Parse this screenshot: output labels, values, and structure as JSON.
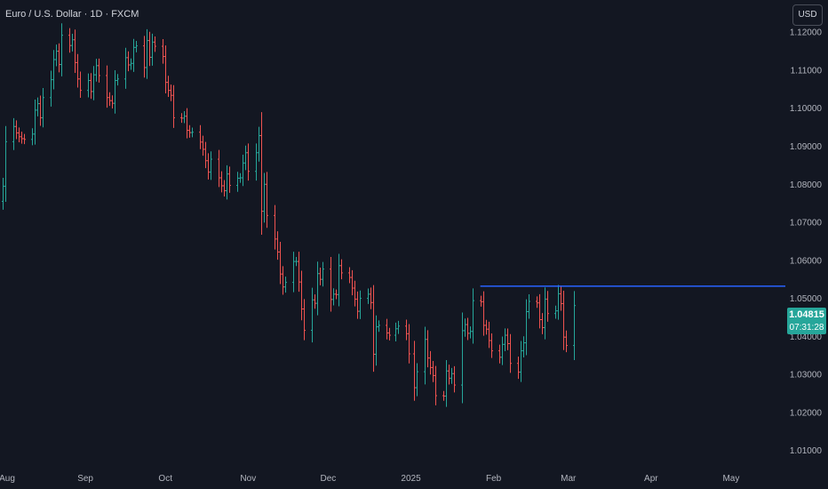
{
  "header": {
    "symbol_title": "Euro / U.S. Dollar · 1D · FXCM",
    "currency_button": "USD"
  },
  "last_price": {
    "value": "1.04815",
    "countdown": "07:31:28"
  },
  "colors": {
    "background": "#131722",
    "up": "#26a69a",
    "down": "#ef5350",
    "level_line": "#2962ff",
    "axis_text": "#b2b5be"
  },
  "chart_data": {
    "type": "ohlc",
    "title": "Euro / U.S. Dollar · 1D · FXCM",
    "ylim": [
      1.005,
      1.128
    ],
    "y_ticks": [
      "1.12000",
      "1.11000",
      "1.10000",
      "1.09000",
      "1.08000",
      "1.07000",
      "1.06000",
      "1.05000",
      "1.04000",
      "1.03000",
      "1.02000",
      "1.01000"
    ],
    "x_ticks": [
      {
        "label": "Aug",
        "date": "2024-08-01"
      },
      {
        "label": "Sep",
        "date": "2024-09-01"
      },
      {
        "label": "Oct",
        "date": "2024-10-01"
      },
      {
        "label": "Nov",
        "date": "2024-11-01"
      },
      {
        "label": "Dec",
        "date": "2024-12-01"
      },
      {
        "label": "2025",
        "date": "2025-01-01"
      },
      {
        "label": "Feb",
        "date": "2025-02-01"
      },
      {
        "label": "Mar",
        "date": "2025-03-01"
      },
      {
        "label": "Apr",
        "date": "2025-04-01"
      },
      {
        "label": "May",
        "date": "2025-05-01"
      }
    ],
    "x_range": [
      "2024-07-31",
      "2025-05-20"
    ],
    "horizontal_line": {
      "price": 1.0532,
      "from_date": "2025-01-27"
    },
    "series": {
      "close": [
        [
          "2024-08-01",
          1.0795
        ],
        [
          "2024-08-02",
          1.0912
        ],
        [
          "2024-08-05",
          1.0952
        ],
        [
          "2024-08-06",
          1.0935
        ],
        [
          "2024-08-07",
          1.0925
        ],
        [
          "2024-08-08",
          1.092
        ],
        [
          "2024-08-09",
          1.0918
        ],
        [
          "2024-08-12",
          1.0932
        ],
        [
          "2024-08-13",
          1.0995
        ],
        [
          "2024-08-14",
          1.1012
        ],
        [
          "2024-08-15",
          1.0975
        ],
        [
          "2024-08-16",
          1.1028
        ],
        [
          "2024-08-19",
          1.1075
        ],
        [
          "2024-08-20",
          1.1128
        ],
        [
          "2024-08-21",
          1.115
        ],
        [
          "2024-08-22",
          1.1115
        ],
        [
          "2024-08-23",
          1.1192
        ],
        [
          "2024-08-26",
          1.1165
        ],
        [
          "2024-08-27",
          1.118
        ],
        [
          "2024-08-28",
          1.112
        ],
        [
          "2024-08-29",
          1.1077
        ],
        [
          "2024-08-30",
          1.1047
        ],
        [
          "2024-09-02",
          1.1073
        ],
        [
          "2024-09-03",
          1.1044
        ],
        [
          "2024-09-04",
          1.1088
        ],
        [
          "2024-09-05",
          1.1112
        ],
        [
          "2024-09-06",
          1.1086
        ],
        [
          "2024-09-09",
          1.1028
        ],
        [
          "2024-09-10",
          1.102
        ],
        [
          "2024-09-11",
          1.1013
        ],
        [
          "2024-09-12",
          1.1073
        ],
        [
          "2024-09-13",
          1.1077
        ],
        [
          "2024-09-16",
          1.1133
        ],
        [
          "2024-09-17",
          1.1114
        ],
        [
          "2024-09-18",
          1.1118
        ],
        [
          "2024-09-19",
          1.116
        ],
        [
          "2024-09-20",
          1.1164
        ],
        [
          "2024-09-23",
          1.1107
        ],
        [
          "2024-09-24",
          1.1178
        ],
        [
          "2024-09-25",
          1.1134
        ],
        [
          "2024-09-26",
          1.1174
        ],
        [
          "2024-09-27",
          1.1163
        ],
        [
          "2024-09-30",
          1.1136
        ],
        [
          "2024-10-01",
          1.1068
        ],
        [
          "2024-10-02",
          1.1047
        ],
        [
          "2024-10-03",
          1.1034
        ],
        [
          "2024-10-04",
          1.0975
        ],
        [
          "2024-10-07",
          1.0974
        ],
        [
          "2024-10-08",
          1.0979
        ],
        [
          "2024-10-09",
          1.0942
        ],
        [
          "2024-10-10",
          1.0936
        ],
        [
          "2024-10-11",
          1.0937
        ],
        [
          "2024-10-14",
          1.0911
        ],
        [
          "2024-10-15",
          1.0892
        ],
        [
          "2024-10-16",
          1.0862
        ],
        [
          "2024-10-17",
          1.0832
        ],
        [
          "2024-10-18",
          1.0866
        ],
        [
          "2024-10-21",
          1.0817
        ],
        [
          "2024-10-22",
          1.0796
        ],
        [
          "2024-10-23",
          1.0783
        ],
        [
          "2024-10-24",
          1.0827
        ],
        [
          "2024-10-25",
          1.0797
        ],
        [
          "2024-10-28",
          1.0816
        ],
        [
          "2024-10-29",
          1.0817
        ],
        [
          "2024-10-30",
          1.0856
        ],
        [
          "2024-10-31",
          1.0883
        ],
        [
          "2024-11-01",
          1.0834
        ],
        [
          "2024-11-04",
          1.0883
        ],
        [
          "2024-11-05",
          1.0928
        ],
        [
          "2024-11-06",
          1.0729
        ],
        [
          "2024-11-07",
          1.08
        ],
        [
          "2024-11-08",
          1.0718
        ],
        [
          "2024-11-11",
          1.0656
        ],
        [
          "2024-11-12",
          1.0622
        ],
        [
          "2024-11-13",
          1.0564
        ],
        [
          "2024-11-14",
          1.053
        ],
        [
          "2024-11-15",
          1.0542
        ],
        [
          "2024-11-18",
          1.0597
        ],
        [
          "2024-11-19",
          1.0597
        ],
        [
          "2024-11-20",
          1.0543
        ],
        [
          "2024-11-21",
          1.0472
        ],
        [
          "2024-11-22",
          1.0416
        ],
        [
          "2024-11-25",
          1.0496
        ],
        [
          "2024-11-26",
          1.0487
        ],
        [
          "2024-11-27",
          1.0565
        ],
        [
          "2024-11-28",
          1.055
        ],
        [
          "2024-11-29",
          1.0577
        ],
        [
          "2024-12-02",
          1.0497
        ],
        [
          "2024-12-03",
          1.0511
        ],
        [
          "2024-12-04",
          1.051
        ],
        [
          "2024-12-05",
          1.0586
        ],
        [
          "2024-12-06",
          1.0567
        ],
        [
          "2024-12-09",
          1.0555
        ],
        [
          "2024-12-10",
          1.0527
        ],
        [
          "2024-12-11",
          1.0498
        ],
        [
          "2024-12-12",
          1.0466
        ],
        [
          "2024-12-13",
          1.05
        ],
        [
          "2024-12-16",
          1.0511
        ],
        [
          "2024-12-17",
          1.0489
        ],
        [
          "2024-12-18",
          1.0353
        ],
        [
          "2024-12-19",
          1.0425
        ],
        [
          "2024-12-20",
          1.0429
        ],
        [
          "2024-12-23",
          1.0409
        ],
        [
          "2024-12-24",
          1.0403
        ],
        [
          "2024-12-26",
          1.042
        ],
        [
          "2024-12-27",
          1.0427
        ],
        [
          "2024-12-30",
          1.0407
        ],
        [
          "2024-12-31",
          1.0354
        ],
        [
          "2025-01-02",
          1.0265
        ],
        [
          "2025-01-03",
          1.0307
        ],
        [
          "2025-01-06",
          1.0392
        ],
        [
          "2025-01-07",
          1.0343
        ],
        [
          "2025-01-08",
          1.0318
        ],
        [
          "2025-01-09",
          1.0297
        ],
        [
          "2025-01-10",
          1.0244
        ],
        [
          "2025-01-13",
          1.0243
        ],
        [
          "2025-01-14",
          1.0309
        ],
        [
          "2025-01-15",
          1.029
        ],
        [
          "2025-01-16",
          1.0302
        ],
        [
          "2025-01-17",
          1.0272
        ],
        [
          "2025-01-20",
          1.0415
        ],
        [
          "2025-01-21",
          1.0431
        ],
        [
          "2025-01-22",
          1.0408
        ],
        [
          "2025-01-23",
          1.0413
        ],
        [
          "2025-01-24",
          1.0494
        ],
        [
          "2025-01-27",
          1.0491
        ],
        [
          "2025-01-28",
          1.0429
        ],
        [
          "2025-01-29",
          1.0419
        ],
        [
          "2025-01-30",
          1.0389
        ],
        [
          "2025-01-31",
          1.0362
        ],
        [
          "2025-02-03",
          1.0345
        ],
        [
          "2025-02-04",
          1.0379
        ],
        [
          "2025-02-05",
          1.0403
        ],
        [
          "2025-02-06",
          1.0381
        ],
        [
          "2025-02-07",
          1.0329
        ],
        [
          "2025-02-10",
          1.0306
        ],
        [
          "2025-02-11",
          1.0362
        ],
        [
          "2025-02-12",
          1.0383
        ],
        [
          "2025-02-13",
          1.0465
        ],
        [
          "2025-02-14",
          1.0492
        ],
        [
          "2025-02-17",
          1.0488
        ],
        [
          "2025-02-18",
          1.0444
        ],
        [
          "2025-02-19",
          1.0423
        ],
        [
          "2025-02-20",
          1.0498
        ],
        [
          "2025-02-21",
          1.046
        ],
        [
          "2025-02-24",
          1.0467
        ],
        [
          "2025-02-25",
          1.0512
        ],
        [
          "2025-02-26",
          1.0486
        ],
        [
          "2025-02-27",
          1.0398
        ],
        [
          "2025-02-28",
          1.0376
        ],
        [
          "2025-03-03",
          1.0481
        ]
      ]
    }
  }
}
